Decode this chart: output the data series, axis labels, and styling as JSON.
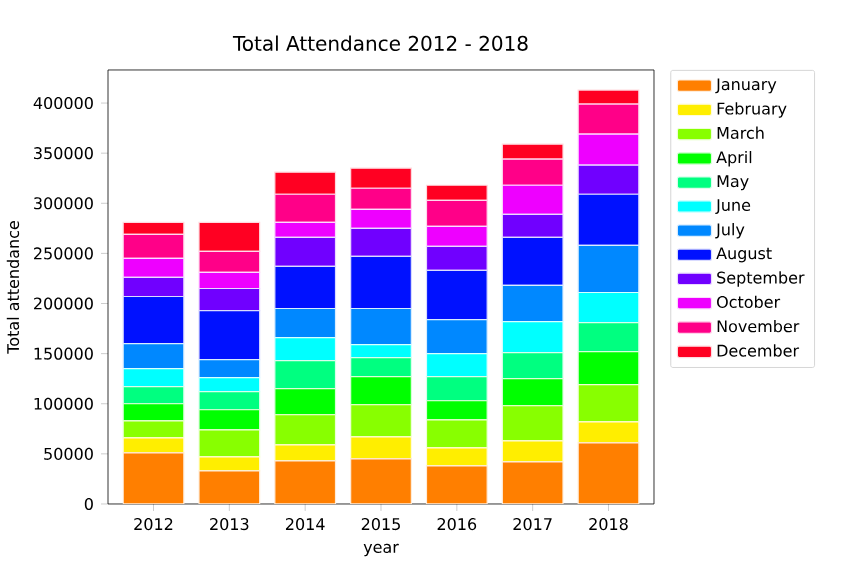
{
  "chart_data": {
    "type": "bar",
    "title": "Total Attendance 2012 - 2018",
    "xlabel": "year",
    "ylabel": "Total attendance",
    "categories": [
      "2012",
      "2013",
      "2014",
      "2015",
      "2016",
      "2017",
      "2018"
    ],
    "stacked": true,
    "legend": "top right",
    "ylim": [
      0,
      433000
    ],
    "yticks": [
      0,
      50000,
      100000,
      150000,
      200000,
      250000,
      300000,
      350000,
      400000
    ],
    "series": [
      {
        "name": "January",
        "color": "#ff7f00",
        "values": [
          51000,
          33000,
          43000,
          45000,
          38000,
          42000,
          61000
        ]
      },
      {
        "name": "February",
        "color": "#ffee00",
        "values": [
          15000,
          14000,
          16000,
          22000,
          18000,
          21000,
          21000
        ]
      },
      {
        "name": "March",
        "color": "#88ff00",
        "values": [
          17000,
          27000,
          30000,
          32000,
          28000,
          35000,
          37000
        ]
      },
      {
        "name": "April",
        "color": "#00ff00",
        "values": [
          17000,
          20000,
          26000,
          28000,
          19000,
          27000,
          33000
        ]
      },
      {
        "name": "May",
        "color": "#00ff80",
        "values": [
          17000,
          18000,
          28000,
          19000,
          24000,
          26000,
          29000
        ]
      },
      {
        "name": "June",
        "color": "#00ffff",
        "values": [
          18000,
          14000,
          23000,
          13000,
          23000,
          31000,
          30000
        ]
      },
      {
        "name": "July",
        "color": "#0088ff",
        "values": [
          25000,
          18000,
          29000,
          36000,
          34000,
          36000,
          47000
        ]
      },
      {
        "name": "August",
        "color": "#0011ff",
        "values": [
          47000,
          49000,
          42000,
          52000,
          49000,
          48000,
          51000
        ]
      },
      {
        "name": "September",
        "color": "#7000ff",
        "values": [
          19000,
          22000,
          29000,
          28000,
          24000,
          23000,
          29000
        ]
      },
      {
        "name": "October",
        "color": "#ee00ff",
        "values": [
          19000,
          16000,
          15000,
          19000,
          20000,
          29000,
          31000
        ]
      },
      {
        "name": "November",
        "color": "#ff0088",
        "values": [
          24000,
          21000,
          28000,
          21000,
          26000,
          26000,
          30000
        ]
      },
      {
        "name": "December",
        "color": "#ff0022",
        "values": [
          12000,
          29000,
          22000,
          20000,
          15000,
          15000,
          14000
        ]
      }
    ]
  }
}
